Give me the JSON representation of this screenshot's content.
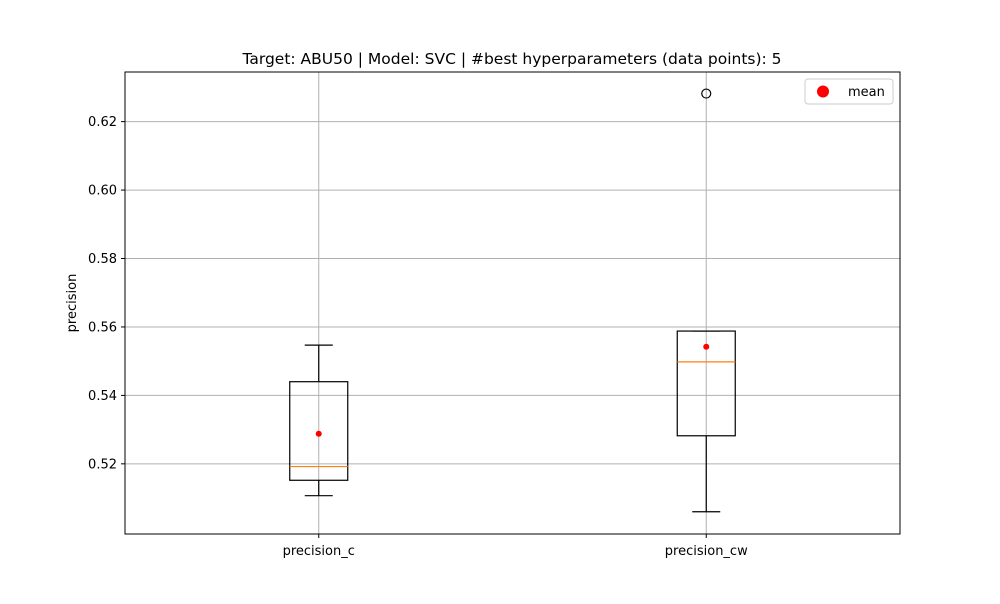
{
  "chart_data": {
    "type": "box",
    "title": "Target: ABU50 | Model: SVC | #best hyperparameters (data points): 5",
    "xlabel": "",
    "ylabel": "precision",
    "ylim": [
      0.4995,
      0.6345
    ],
    "yticks": [
      0.52,
      0.54,
      0.56,
      0.58,
      0.6,
      0.62
    ],
    "ytick_labels": [
      "0.52",
      "0.54",
      "0.56",
      "0.58",
      "0.60",
      "0.62"
    ],
    "grid": true,
    "legend": {
      "placement": "top-right",
      "entries": [
        {
          "label": "mean",
          "marker": "circle",
          "color": "#ff0000"
        }
      ]
    },
    "categories": [
      "precision_c",
      "precision_cw"
    ],
    "boxes": [
      {
        "name": "precision_c",
        "whisker_low": 0.5107,
        "q1": 0.5152,
        "median": 0.5192,
        "q3": 0.544,
        "whisker_high": 0.5547,
        "mean": 0.5288,
        "outliers": []
      },
      {
        "name": "precision_cw",
        "whisker_low": 0.506,
        "q1": 0.5282,
        "median": 0.5498,
        "q3": 0.5588,
        "whisker_high": 0.5588,
        "mean": 0.5542,
        "outliers": [
          0.6282
        ]
      }
    ],
    "colors": {
      "box": "#000000",
      "median": "#ff7f0e",
      "mean": "#ff0000",
      "grid": "#b0b0b0",
      "outlier_edge": "#000000"
    }
  }
}
